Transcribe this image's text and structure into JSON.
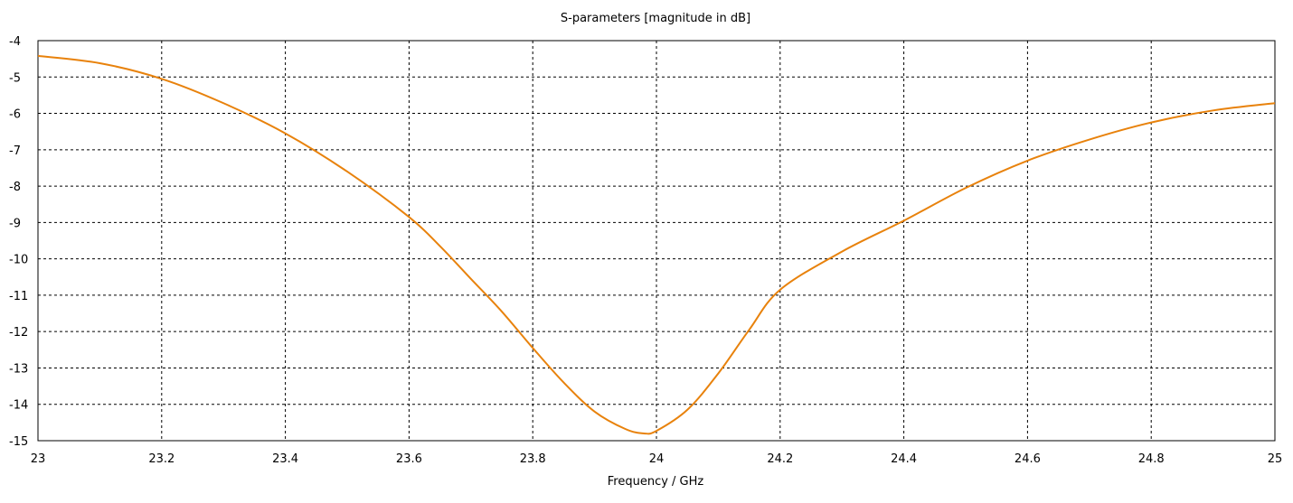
{
  "chart_data": {
    "type": "line",
    "title": "S-parameters [magnitude in dB]",
    "xlabel": "Frequency / GHz",
    "ylabel": "",
    "xlim": [
      23,
      25
    ],
    "ylim": [
      -15,
      -4
    ],
    "grid": true,
    "xticks": [
      "23",
      "23.2",
      "23.4",
      "23.6",
      "23.8",
      "24",
      "24.2",
      "24.4",
      "24.6",
      "24.8",
      "25"
    ],
    "yticks": [
      "-4",
      "-5",
      "-6",
      "-7",
      "-8",
      "-9",
      "-10",
      "-11",
      "-12",
      "-13",
      "-14",
      "-15"
    ],
    "series": [
      {
        "color": "#e8820c",
        "x": [
          23.0,
          23.1,
          23.2,
          23.3,
          23.4,
          23.5,
          23.6,
          23.65,
          23.7,
          23.75,
          23.8,
          23.85,
          23.9,
          23.95,
          23.98,
          24.0,
          24.05,
          24.1,
          24.15,
          24.2,
          24.3,
          24.4,
          24.5,
          24.6,
          24.7,
          24.8,
          24.9,
          25.0
        ],
        "y": [
          -4.42,
          -4.62,
          -5.05,
          -5.72,
          -6.55,
          -7.6,
          -8.85,
          -9.65,
          -10.55,
          -11.45,
          -12.45,
          -13.4,
          -14.2,
          -14.68,
          -14.8,
          -14.73,
          -14.15,
          -13.15,
          -11.95,
          -10.85,
          -9.8,
          -8.95,
          -8.05,
          -7.3,
          -6.72,
          -6.25,
          -5.92,
          -5.72
        ]
      }
    ]
  }
}
